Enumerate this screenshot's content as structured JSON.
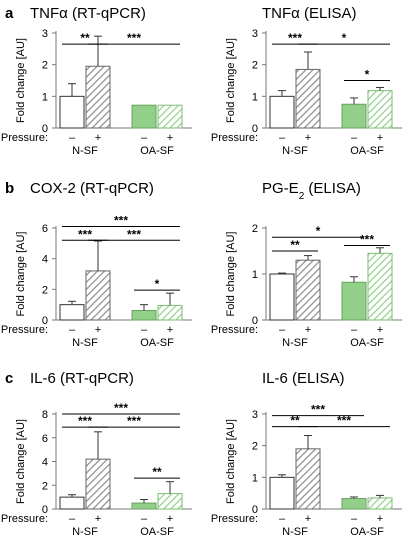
{
  "colors": {
    "white_bar": "#ffffff",
    "hatched_bar": "#8c8c8c",
    "green_bar": "#92d08a",
    "green_hatch": "#92d08a",
    "outline": "#555555"
  },
  "chart_data": [
    {
      "id": "tnf_qpcr",
      "panel": "a",
      "type": "bar",
      "title_parts": [
        {
          "t": "TNFα (RT-qPCR)"
        }
      ],
      "ylabel": "Fold change [AU]",
      "ylim": [
        0,
        3
      ],
      "yticks": [
        0,
        1,
        2,
        3
      ],
      "xlabel": "Pressure:",
      "pressure_labels": [
        "–",
        "+",
        "–",
        "+"
      ],
      "groups": [
        "N-SF",
        "OA-SF"
      ],
      "bars": [
        {
          "group": "N-SF",
          "pressure": "-",
          "value": 1.0,
          "error": 0.4
        },
        {
          "group": "N-SF",
          "pressure": "+",
          "value": 1.95,
          "error": 0.95
        },
        {
          "group": "OA-SF",
          "pressure": "-",
          "value": 0.72,
          "error": 0.0
        },
        {
          "group": "OA-SF",
          "pressure": "+",
          "value": 0.72,
          "error": 0.0
        }
      ],
      "significance": [
        {
          "from": 0,
          "to": 1,
          "label": "**",
          "y": 2.65
        },
        {
          "from": 1,
          "to": 3,
          "label": "***",
          "y": 2.65
        }
      ]
    },
    {
      "id": "tnf_elisa",
      "panel": "",
      "type": "bar",
      "title_parts": [
        {
          "t": "TNFα (ELISA)"
        }
      ],
      "ylabel": "Fold change [AU]",
      "ylim": [
        0,
        3
      ],
      "yticks": [
        0,
        1,
        2,
        3
      ],
      "xlabel": "Pressure:",
      "pressure_labels": [
        "–",
        "+",
        "–",
        "+"
      ],
      "groups": [
        "N-SF",
        "OA-SF"
      ],
      "bars": [
        {
          "group": "N-SF",
          "pressure": "-",
          "value": 1.0,
          "error": 0.18
        },
        {
          "group": "N-SF",
          "pressure": "+",
          "value": 1.85,
          "error": 0.55
        },
        {
          "group": "OA-SF",
          "pressure": "-",
          "value": 0.75,
          "error": 0.2
        },
        {
          "group": "OA-SF",
          "pressure": "+",
          "value": 1.18,
          "error": 0.1
        }
      ],
      "significance": [
        {
          "from": 0,
          "to": 1,
          "label": "***",
          "y": 2.65
        },
        {
          "from": 1,
          "to": 3,
          "label": "*",
          "y": 2.65
        },
        {
          "from": 2,
          "to": 3,
          "label": "*",
          "y": 1.5
        }
      ]
    },
    {
      "id": "cox2_qpcr",
      "panel": "b",
      "type": "bar",
      "title_parts": [
        {
          "t": "COX-2 (RT-qPCR)"
        }
      ],
      "ylabel": "Fold change [AU]",
      "ylim": [
        0,
        6
      ],
      "yticks": [
        0,
        2,
        4,
        6
      ],
      "xlabel": "Pressure:",
      "pressure_labels": [
        "–",
        "+",
        "–",
        "+"
      ],
      "groups": [
        "N-SF",
        "OA-SF"
      ],
      "bars": [
        {
          "group": "N-SF",
          "pressure": "-",
          "value": 1.0,
          "error": 0.22
        },
        {
          "group": "N-SF",
          "pressure": "+",
          "value": 3.2,
          "error": 1.95
        },
        {
          "group": "OA-SF",
          "pressure": "-",
          "value": 0.62,
          "error": 0.38
        },
        {
          "group": "OA-SF",
          "pressure": "+",
          "value": 0.95,
          "error": 0.8
        }
      ],
      "significance": [
        {
          "from": 0,
          "to": 3,
          "label": "***",
          "y": 6.1
        },
        {
          "from": 0,
          "to": 1,
          "label": "***",
          "y": 5.2
        },
        {
          "from": 1,
          "to": 3,
          "label": "***",
          "y": 5.2
        },
        {
          "from": 2,
          "to": 3,
          "label": "*",
          "y": 1.95
        }
      ]
    },
    {
      "id": "pge2_elisa",
      "panel": "",
      "type": "bar",
      "title_parts": [
        {
          "t": "PG-E"
        },
        {
          "t": "2",
          "sub": true
        },
        {
          "t": " (ELISA)"
        }
      ],
      "ylabel": "Fold change [AU]",
      "ylim": [
        0,
        2
      ],
      "yticks": [
        0,
        1,
        2
      ],
      "xlabel": "Pressure:",
      "pressure_labels": [
        "–",
        "+",
        "–",
        "+"
      ],
      "groups": [
        "N-SF",
        "OA-SF"
      ],
      "bars": [
        {
          "group": "N-SF",
          "pressure": "-",
          "value": 1.0,
          "error": 0.02
        },
        {
          "group": "N-SF",
          "pressure": "+",
          "value": 1.3,
          "error": 0.1
        },
        {
          "group": "OA-SF",
          "pressure": "-",
          "value": 0.82,
          "error": 0.12
        },
        {
          "group": "OA-SF",
          "pressure": "+",
          "value": 1.45,
          "error": 0.12
        }
      ],
      "significance": [
        {
          "from": 0,
          "to": 2,
          "label": "*",
          "y": 1.8
        },
        {
          "from": 0,
          "to": 1,
          "label": "**",
          "y": 1.5
        },
        {
          "from": 2,
          "to": 3,
          "label": "***",
          "y": 1.62
        }
      ]
    },
    {
      "id": "il6_qpcr",
      "panel": "c",
      "type": "bar",
      "title_parts": [
        {
          "t": "IL-6 (RT-qPCR)"
        }
      ],
      "ylabel": "Fold change [AU]",
      "ylim": [
        0,
        8
      ],
      "yticks": [
        0,
        2,
        4,
        6,
        8
      ],
      "xlabel": "Pressure:",
      "pressure_labels": [
        "–",
        "+",
        "–",
        "+"
      ],
      "groups": [
        "N-SF",
        "OA-SF"
      ],
      "bars": [
        {
          "group": "N-SF",
          "pressure": "-",
          "value": 1.0,
          "error": 0.2
        },
        {
          "group": "N-SF",
          "pressure": "+",
          "value": 4.2,
          "error": 2.3
        },
        {
          "group": "OA-SF",
          "pressure": "-",
          "value": 0.5,
          "error": 0.3
        },
        {
          "group": "OA-SF",
          "pressure": "+",
          "value": 1.3,
          "error": 1.0
        }
      ],
      "significance": [
        {
          "from": 0,
          "to": 3,
          "label": "***",
          "y": 8.0
        },
        {
          "from": 0,
          "to": 1,
          "label": "***",
          "y": 6.9
        },
        {
          "from": 1,
          "to": 3,
          "label": "***",
          "y": 6.9
        },
        {
          "from": 2,
          "to": 3,
          "label": "**",
          "y": 2.6
        }
      ]
    },
    {
      "id": "il6_elisa",
      "panel": "",
      "type": "bar",
      "title_parts": [
        {
          "t": "IL-6 (ELISA)"
        }
      ],
      "ylabel": "Fold change [AU]",
      "ylim": [
        0,
        3
      ],
      "yticks": [
        0,
        1,
        2,
        3
      ],
      "xlabel": "Pressure:",
      "pressure_labels": [
        "–",
        "+",
        "–",
        "+"
      ],
      "groups": [
        "N-SF",
        "OA-SF"
      ],
      "bars": [
        {
          "group": "N-SF",
          "pressure": "-",
          "value": 1.0,
          "error": 0.08
        },
        {
          "group": "N-SF",
          "pressure": "+",
          "value": 1.9,
          "error": 0.42
        },
        {
          "group": "OA-SF",
          "pressure": "-",
          "value": 0.33,
          "error": 0.05
        },
        {
          "group": "OA-SF",
          "pressure": "+",
          "value": 0.35,
          "error": 0.08
        }
      ],
      "significance": [
        {
          "from": 0,
          "to": 2,
          "label": "***",
          "y": 2.95
        },
        {
          "from": 0,
          "to": 1,
          "label": "**",
          "y": 2.6
        },
        {
          "from": 1,
          "to": 3,
          "label": "***",
          "y": 2.6
        }
      ]
    }
  ]
}
